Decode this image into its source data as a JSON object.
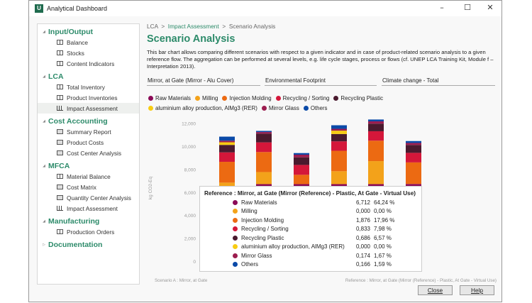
{
  "window": {
    "title": "Analytical Dashboard",
    "app_icon": "U",
    "controls": {
      "minimize": "–",
      "maximize": "☐",
      "close": "✕"
    }
  },
  "sidebar": {
    "groups": [
      {
        "label": "Input/Output",
        "expanded": true,
        "items": [
          {
            "label": "Balance",
            "icon": "table-icon"
          },
          {
            "label": "Stocks",
            "icon": "table-icon"
          },
          {
            "label": "Content Indicators",
            "icon": "table-icon"
          }
        ]
      },
      {
        "label": "LCA",
        "expanded": true,
        "items": [
          {
            "label": "Total Inventory",
            "icon": "table-icon"
          },
          {
            "label": "Product Inventories",
            "icon": "table-icon"
          },
          {
            "label": "Impact Assessment",
            "icon": "chart-icon",
            "selected": true
          }
        ]
      },
      {
        "label": "Cost Accounting",
        "expanded": true,
        "items": [
          {
            "label": "Summary Report",
            "icon": "cost-icon"
          },
          {
            "label": "Product Costs",
            "icon": "cost-icon"
          },
          {
            "label": "Cost Center Analysis",
            "icon": "cost-icon"
          }
        ]
      },
      {
        "label": "MFCA",
        "expanded": true,
        "items": [
          {
            "label": "Material Balance",
            "icon": "table-icon"
          },
          {
            "label": "Cost Matrix",
            "icon": "cost-icon"
          },
          {
            "label": "Quantity Center Analysis",
            "icon": "cost-icon"
          },
          {
            "label": "Impact Assessment",
            "icon": "chart-icon"
          }
        ]
      },
      {
        "label": "Manufacturing",
        "expanded": true,
        "items": [
          {
            "label": "Production Orders",
            "icon": "table-icon"
          }
        ]
      },
      {
        "label": "Documentation",
        "expanded": false,
        "items": []
      }
    ]
  },
  "breadcrumb": {
    "items": [
      "LCA",
      "Impact Assessment",
      "Scenario Analysis"
    ],
    "sep": ">"
  },
  "page": {
    "title": "Scenario Analysis",
    "description": "This bar chart allows comparing  different scenarios with respect to a given indicator and in case of product-related scenario analysis to a given reference flow.  The aggregation can be performed at several levels, e.g. life cycle stages, process or flows (cf. UNEP LCA Training Kit, Module f – Interpretation 2013)."
  },
  "selectors": {
    "product": "Mirror, at Gate (Mirror - Alu Cover)",
    "method": "Environmental Footprint",
    "indicator": "Climate change - Total"
  },
  "buttons": {
    "close": "Close",
    "help": "Help"
  },
  "chart_data": {
    "type": "bar",
    "stacked": true,
    "ylabel": "kg CO2-Eq",
    "ylim": [
      0,
      12500
    ],
    "yticks": [
      "0",
      "2,000",
      "4,000",
      "6,000",
      "8,000",
      "10,000",
      "12,000"
    ],
    "ytick_values": [
      0,
      2000,
      4000,
      6000,
      8000,
      10000,
      12000
    ],
    "categories": [
      "Scenario A : Mirror, at Gate",
      "",
      "",
      "",
      "",
      "Reference : Mirror, at Gate (Mirror (Reference) - Plastic, At Gate - Virtual Use)"
    ],
    "series": [
      {
        "name": "Raw Materials",
        "color": "#8b0a57",
        "values": [
          6200,
          6700,
          6700,
          6700,
          6700,
          6712
        ]
      },
      {
        "name": "Milling",
        "color": "#f3a21a",
        "values": [
          630,
          1050,
          0,
          1120,
          2000,
          0
        ]
      },
      {
        "name": "Injection Molding",
        "color": "#ec6a12",
        "values": [
          1810,
          1740,
          810,
          1780,
          1780,
          1876
        ]
      },
      {
        "name": "Recycling / Sorting",
        "color": "#d4173a",
        "values": [
          820,
          840,
          860,
          820,
          820,
          833
        ]
      },
      {
        "name": "Recycling Plastic",
        "color": "#4a1a2e",
        "values": [
          650,
          760,
          660,
          640,
          660,
          686
        ]
      },
      {
        "name": "aluminium alloy production, AlMg3 (RER)",
        "color": "#f8cc12",
        "values": [
          230,
          0,
          0,
          290,
          0,
          0
        ]
      },
      {
        "name": "Mirror Glass",
        "color": "#9c1d4f",
        "values": [
          140,
          140,
          230,
          160,
          200,
          174
        ]
      },
      {
        "name": "Others",
        "color": "#0b4aa8",
        "values": [
          350,
          100,
          140,
          310,
          160,
          166
        ]
      }
    ],
    "legend": "top",
    "tooltip": {
      "title": "Reference : Mirror, at Gate (Mirror (Reference) - Plastic, At Gate - Virtual Use)",
      "rows": [
        {
          "name": "Raw Materials",
          "value": "6,712",
          "pct": "64,24 %",
          "color": "#8b0a57"
        },
        {
          "name": "Milling",
          "value": "0,000",
          "pct": "0,00 %",
          "color": "#f3a21a"
        },
        {
          "name": "Injection Molding",
          "value": "1,876",
          "pct": "17,96 %",
          "color": "#ec6a12"
        },
        {
          "name": "Recycling / Sorting",
          "value": "0,833",
          "pct": "7,98 %",
          "color": "#d4173a"
        },
        {
          "name": "Recycling Plastic",
          "value": "0,686",
          "pct": "6,57 %",
          "color": "#4a1a2e"
        },
        {
          "name": "aluminium alloy production, AlMg3 (RER)",
          "value": "0,000",
          "pct": "0,00 %",
          "color": "#f8cc12"
        },
        {
          "name": "Mirror Glass",
          "value": "0,174",
          "pct": "1,67 %",
          "color": "#9c1d4f"
        },
        {
          "name": "Others",
          "value": "0,166",
          "pct": "1,59 %",
          "color": "#0b4aa8"
        }
      ]
    }
  }
}
